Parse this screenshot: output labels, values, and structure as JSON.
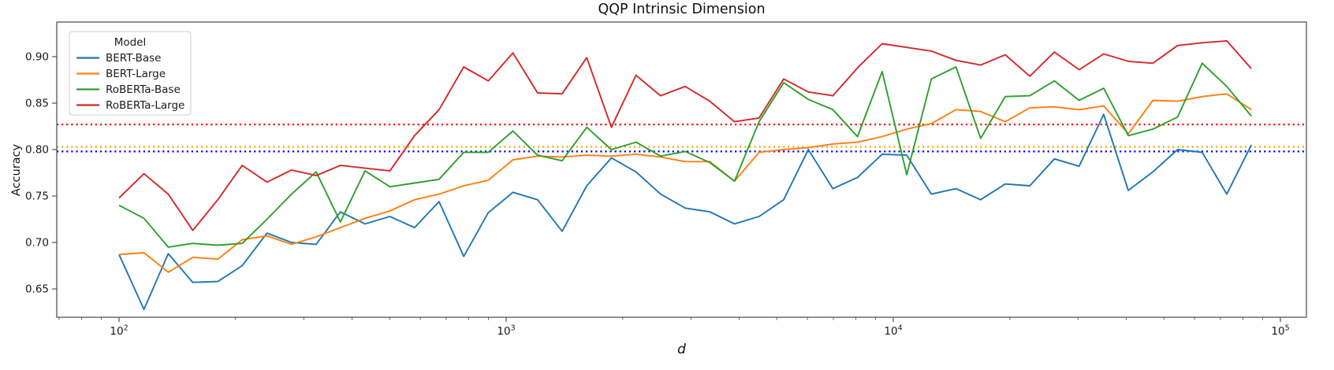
{
  "chart_data": {
    "type": "line",
    "title": "QQP Intrinsic Dimension",
    "xlabel": "d",
    "ylabel": "Accuracy",
    "x_scale": "log",
    "xlim": [
      69,
      116000
    ],
    "ylim": [
      0.62,
      0.937
    ],
    "grid": false,
    "x": [
      100,
      116,
      134,
      155,
      180,
      208,
      241,
      279,
      323,
      373,
      432,
      501,
      580,
      671,
      777,
      899,
      1041,
      1205,
      1395,
      1615,
      1870,
      2164,
      2506,
      2901,
      3358,
      3888,
      4501,
      5210,
      6032,
      6983,
      8084,
      9359,
      10835,
      12544,
      14522,
      16811,
      19462,
      22531,
      26084,
      30197,
      34958,
      40471,
      46853,
      54241,
      62794,
      72696,
      84159
    ],
    "series": [
      {
        "name": "BERT-Base",
        "color": "#1f77b4",
        "values": [
          0.687,
          0.628,
          0.688,
          0.657,
          0.658,
          0.675,
          0.71,
          0.7,
          0.698,
          0.733,
          0.72,
          0.728,
          0.716,
          0.744,
          0.685,
          0.732,
          0.754,
          0.746,
          0.712,
          0.761,
          0.791,
          0.776,
          0.752,
          0.737,
          0.733,
          0.72,
          0.728,
          0.746,
          0.8,
          0.758,
          0.77,
          0.795,
          0.794,
          0.752,
          0.758,
          0.746,
          0.763,
          0.761,
          0.79,
          0.782,
          0.838,
          0.756,
          0.776,
          0.8,
          0.797,
          0.752,
          0.805
        ]
      },
      {
        "name": "BERT-Large",
        "color": "#ff7f0e",
        "values": [
          0.687,
          0.689,
          0.668,
          0.684,
          0.682,
          0.703,
          0.707,
          0.698,
          0.706,
          0.716,
          0.726,
          0.734,
          0.746,
          0.752,
          0.761,
          0.767,
          0.789,
          0.793,
          0.792,
          0.794,
          0.793,
          0.795,
          0.792,
          0.787,
          0.787,
          0.766,
          0.797,
          0.8,
          0.802,
          0.806,
          0.808,
          0.814,
          0.822,
          0.828,
          0.843,
          0.841,
          0.83,
          0.845,
          0.846,
          0.843,
          0.847,
          0.817,
          0.853,
          0.852,
          0.857,
          0.86,
          0.843
        ]
      },
      {
        "name": "RoBERTa-Base",
        "color": "#2ca02c",
        "values": [
          0.74,
          0.726,
          0.695,
          0.699,
          0.697,
          0.699,
          0.725,
          0.752,
          0.776,
          0.722,
          0.777,
          0.76,
          0.764,
          0.768,
          0.797,
          0.797,
          0.82,
          0.794,
          0.788,
          0.824,
          0.8,
          0.808,
          0.793,
          0.798,
          0.786,
          0.766,
          0.83,
          0.872,
          0.854,
          0.843,
          0.814,
          0.884,
          0.773,
          0.876,
          0.889,
          0.812,
          0.857,
          0.858,
          0.874,
          0.853,
          0.866,
          0.815,
          0.822,
          0.835,
          0.893,
          0.868,
          0.836
        ]
      },
      {
        "name": "RoBERTa-Large",
        "color": "#d62728",
        "values": [
          0.748,
          0.774,
          0.752,
          0.713,
          0.746,
          0.783,
          0.765,
          0.778,
          0.772,
          0.783,
          0.78,
          0.777,
          0.815,
          0.843,
          0.889,
          0.874,
          0.904,
          0.861,
          0.86,
          0.899,
          0.824,
          0.88,
          0.858,
          0.868,
          0.852,
          0.83,
          0.834,
          0.876,
          0.862,
          0.858,
          0.888,
          0.914,
          0.91,
          0.906,
          0.896,
          0.891,
          0.902,
          0.879,
          0.905,
          0.886,
          0.903,
          0.895,
          0.893,
          0.912,
          0.915,
          0.917,
          0.887
        ]
      }
    ],
    "baselines": [
      {
        "name": "red-dotted-baseline",
        "color": "#ff0000",
        "value": 0.827,
        "style": "dotted"
      },
      {
        "name": "orange-dotted-baseline",
        "color": "#ffa500",
        "value": 0.803,
        "style": "dotted"
      },
      {
        "name": "blue-dotted-baseline",
        "color": "#0000ff",
        "value": 0.798,
        "style": "dotted"
      }
    ],
    "legend": {
      "title": "Model",
      "position": "upper left",
      "entries": [
        "BERT-Base",
        "BERT-Large",
        "RoBERTa-Base",
        "RoBERTa-Large"
      ]
    },
    "x_ticks": [
      {
        "value": 100,
        "mantissa": "10",
        "exponent": "2"
      },
      {
        "value": 1000,
        "mantissa": "10",
        "exponent": "3"
      },
      {
        "value": 10000,
        "mantissa": "10",
        "exponent": "4"
      },
      {
        "value": 100000,
        "mantissa": "10",
        "exponent": "5"
      }
    ],
    "y_ticks": [
      {
        "value": 0.65,
        "label": "0.65"
      },
      {
        "value": 0.7,
        "label": "0.70"
      },
      {
        "value": 0.75,
        "label": "0.75"
      },
      {
        "value": 0.8,
        "label": "0.80"
      },
      {
        "value": 0.85,
        "label": "0.85"
      },
      {
        "value": 0.9,
        "label": "0.90"
      }
    ]
  }
}
